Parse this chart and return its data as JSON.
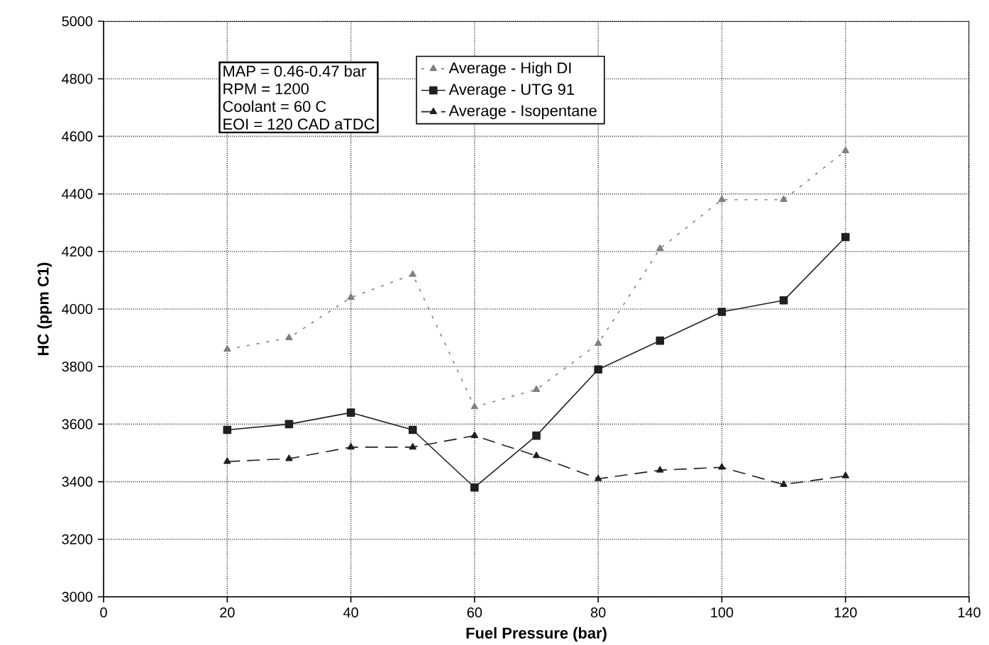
{
  "chart_data": {
    "type": "line",
    "xlabel": "Fuel Pressure (bar)",
    "ylabel": "HC (ppm C1)",
    "x": [
      20,
      30,
      40,
      50,
      60,
      70,
      80,
      90,
      100,
      110,
      120
    ],
    "series": [
      {
        "name": "Average - High DI",
        "color": "#808080",
        "line_style": "dotted",
        "marker": "triangle",
        "values": [
          3860,
          3900,
          4040,
          4120,
          3660,
          3720,
          3880,
          4210,
          4380,
          4380,
          4550
        ]
      },
      {
        "name": "Average - UTG 91",
        "color": "#202020",
        "line_style": "solid",
        "marker": "square",
        "values": [
          3580,
          3600,
          3640,
          3580,
          3380,
          3560,
          3790,
          3890,
          3990,
          4030,
          4250
        ]
      },
      {
        "name": "Average - Isopentane",
        "color": "#202020",
        "line_style": "dashed",
        "marker": "triangle",
        "values": [
          3470,
          3480,
          3520,
          3520,
          3560,
          3490,
          3410,
          3440,
          3450,
          3390,
          3420
        ]
      }
    ],
    "xlim": [
      0,
      140
    ],
    "xticks": [
      0,
      20,
      40,
      60,
      80,
      100,
      120,
      140
    ],
    "ylim": [
      3000,
      5000
    ],
    "yticks": [
      3000,
      3200,
      3400,
      3600,
      3800,
      4000,
      4200,
      4400,
      4600,
      4800,
      5000
    ],
    "grid": true,
    "legend": "top",
    "annotations": [
      "MAP = 0.46-0.47 bar",
      "RPM = 1200",
      "Coolant  = 60 C",
      "EOI = 120 CAD aTDC"
    ]
  }
}
